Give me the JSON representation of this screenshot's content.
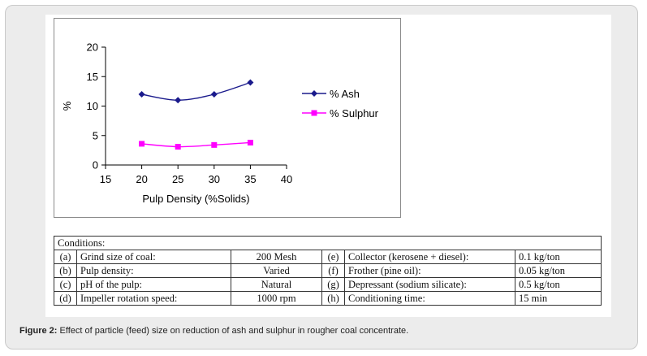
{
  "chart_data": {
    "type": "line",
    "title": "",
    "xlabel": "Pulp Density (%Solids)",
    "ylabel": "%",
    "xlim": [
      15,
      40
    ],
    "ylim": [
      0,
      20
    ],
    "xticks": [
      "15",
      "20",
      "25",
      "30",
      "35",
      "40"
    ],
    "yticks": [
      "0",
      "5",
      "10",
      "15",
      "20"
    ],
    "legend_position": "right",
    "series": [
      {
        "name": "% Ash",
        "color": "#1a1a8c",
        "marker": "diamond",
        "x": [
          20,
          25,
          30,
          35
        ],
        "values": [
          12.0,
          11.0,
          12.0,
          14.0
        ]
      },
      {
        "name": "% Sulphur",
        "color": "#ff00ff",
        "marker": "square",
        "x": [
          20,
          25,
          30,
          35
        ],
        "values": [
          3.6,
          3.1,
          3.4,
          3.8
        ]
      }
    ]
  },
  "conditions": {
    "title": "Conditions:",
    "rows": [
      {
        "k1": "(a)",
        "l1": "Grind size of coal:",
        "v1": "200 Mesh",
        "k2": "(e)",
        "l2": "Collector (kerosene + diesel):",
        "v2": "0.1 kg/ton"
      },
      {
        "k1": "(b)",
        "l1": "Pulp density:",
        "v1": "Varied",
        "k2": "(f)",
        "l2": "Frother (pine oil):",
        "v2": "0.05 kg/ton"
      },
      {
        "k1": "(c)",
        "l1": "pH of the pulp:",
        "v1": "Natural",
        "k2": "(g)",
        "l2": "Depressant (sodium silicate):",
        "v2": "0.5 kg/ton"
      },
      {
        "k1": "(d)",
        "l1": "Impeller rotation speed:",
        "v1": "1000 rpm",
        "k2": "(h)",
        "l2": "Conditioning time:",
        "v2": "15 min"
      }
    ]
  },
  "caption": {
    "label": "Figure 2:",
    "text": " Effect of particle (feed) size on reduction of ash and sulphur in rougher coal concentrate."
  }
}
